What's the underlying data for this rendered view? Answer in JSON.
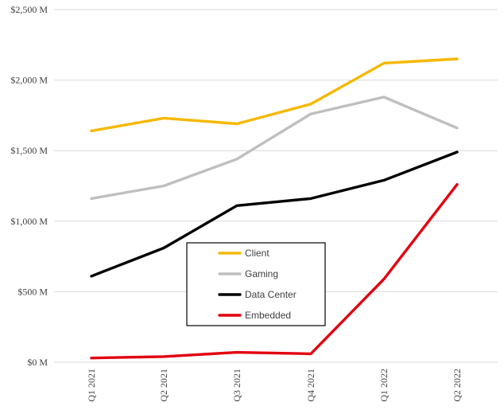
{
  "chart_data": {
    "type": "line",
    "title": "",
    "xlabel": "",
    "ylabel": "",
    "categories": [
      "Q1 2021",
      "Q2 2021",
      "Q3 2021",
      "Q4 2021",
      "Q1 2022",
      "Q2 2022"
    ],
    "ylim": [
      0,
      2500
    ],
    "yticks": [
      0,
      500,
      1000,
      1500,
      2000,
      2500
    ],
    "ytick_labels": [
      "$0 M",
      "$500 M",
      "$1,000 M",
      "$1,500 M",
      "$2,000 M",
      "$2,500 M"
    ],
    "grid": true,
    "legend_position": "center",
    "series": [
      {
        "name": "Client",
        "color": "#f5b800",
        "values": [
          1640,
          1730,
          1690,
          1830,
          2120,
          2150
        ]
      },
      {
        "name": "Gaming",
        "color": "#bfbfbf",
        "values": [
          1160,
          1250,
          1440,
          1760,
          1880,
          1660
        ]
      },
      {
        "name": "Data Center",
        "color": "#000000",
        "values": [
          610,
          810,
          1110,
          1160,
          1290,
          1490
        ]
      },
      {
        "name": "Embedded",
        "color": "#e3000f",
        "values": [
          30,
          40,
          70,
          60,
          590,
          1260
        ]
      }
    ]
  }
}
